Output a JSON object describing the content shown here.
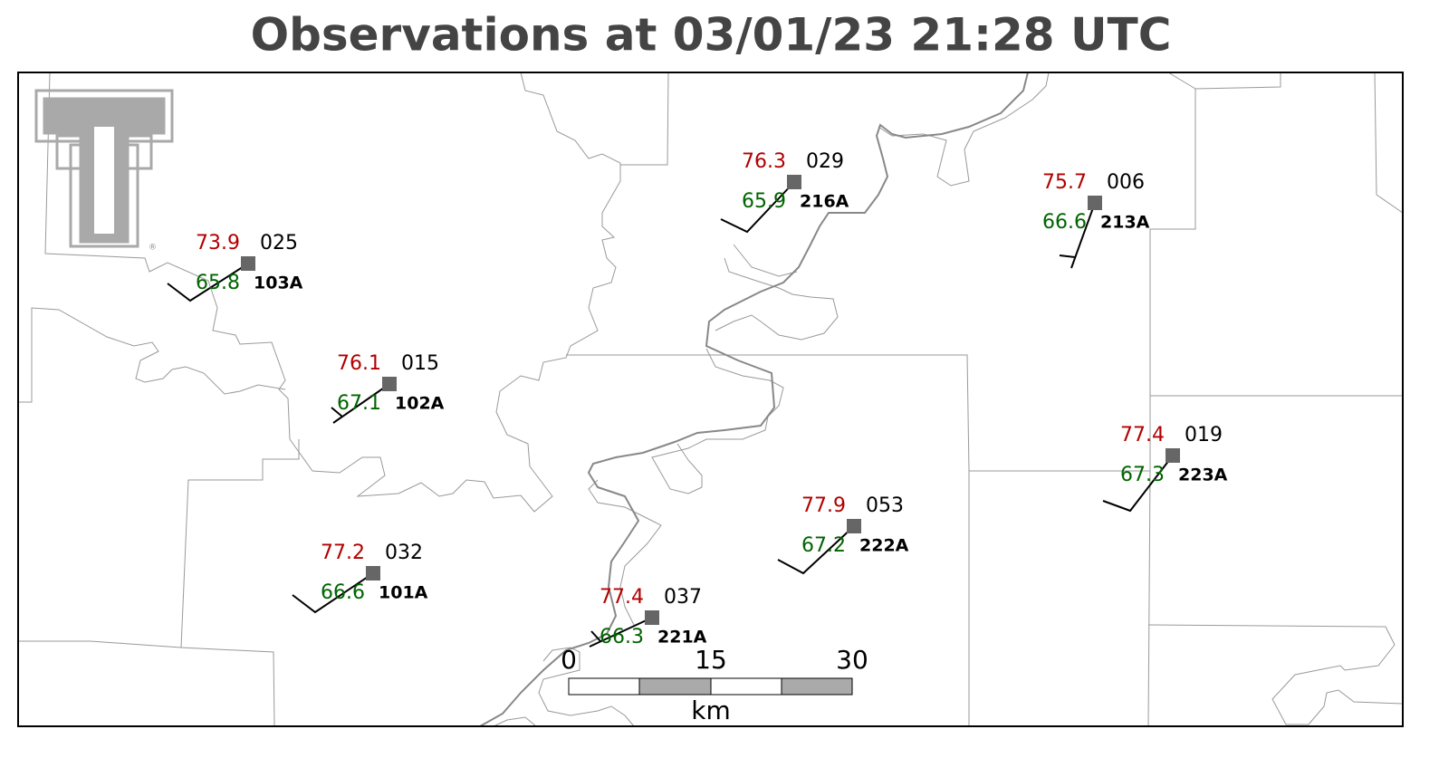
{
  "title": "Observations at 03/01/23 21:28 UTC",
  "stations": [
    {
      "temperature": 73.9,
      "dewpoint": 65.8,
      "pressure": "025",
      "id": "103A"
    },
    {
      "temperature": 76.1,
      "dewpoint": 67.1,
      "pressure": "015",
      "id": "102A"
    },
    {
      "temperature": 76.3,
      "dewpoint": 65.9,
      "pressure": "029",
      "id": "216A"
    },
    {
      "temperature": 75.7,
      "dewpoint": 66.6,
      "pressure": "006",
      "id": "213A"
    },
    {
      "temperature": 77.4,
      "dewpoint": 67.3,
      "pressure": "019",
      "id": "223A"
    },
    {
      "temperature": 77.9,
      "dewpoint": 67.2,
      "pressure": "053",
      "id": "222A"
    },
    {
      "temperature": 77.2,
      "dewpoint": 66.6,
      "pressure": "032",
      "id": "101A"
    },
    {
      "temperature": 77.4,
      "dewpoint": 66.3,
      "pressure": "037",
      "id": "221A"
    }
  ],
  "scale_bar": {
    "ticks": [
      0,
      15,
      30
    ],
    "unit": "km"
  }
}
